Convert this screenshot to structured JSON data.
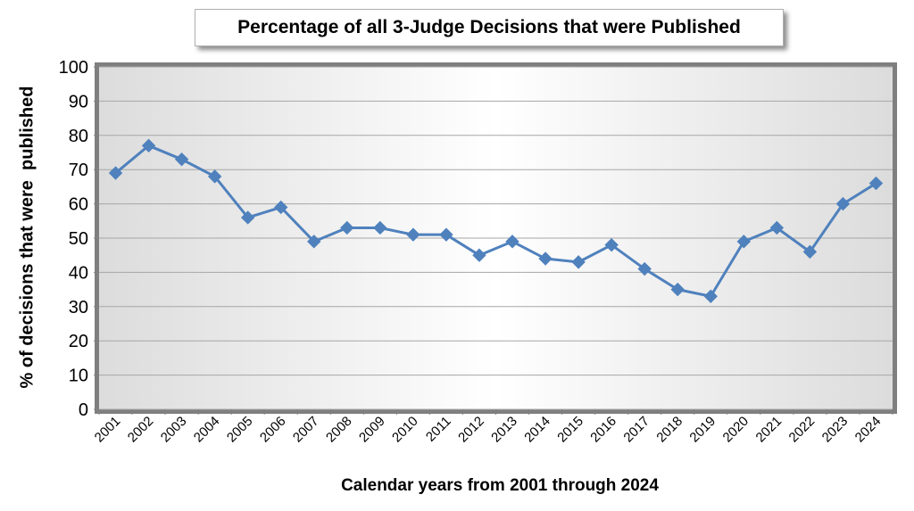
{
  "chart_data": {
    "type": "line",
    "title": "Percentage of all 3-Judge Decisions that were Published",
    "xlabel": "Calendar years from 2001 through 2024",
    "ylabel": "% of decisions that were  published",
    "ylim": [
      0,
      100
    ],
    "yticks": [
      "0",
      "10",
      "20",
      "30",
      "40",
      "50",
      "60",
      "70",
      "80",
      "90",
      "100"
    ],
    "grid": true,
    "categories": [
      "2001",
      "2002",
      "2003",
      "2004",
      "2005",
      "2006",
      "2007",
      "2008",
      "2009",
      "2010",
      "2011",
      "2012",
      "2013",
      "2014",
      "2015",
      "2016",
      "2017",
      "2018",
      "2019",
      "2020",
      "2021",
      "2022",
      "2023",
      "2024"
    ],
    "series": [
      {
        "values": [
          69,
          77,
          73,
          68,
          56,
          59,
          49,
          53,
          53,
          51,
          51,
          45,
          49,
          44,
          43,
          48,
          41,
          35,
          33,
          49,
          53,
          46,
          60,
          66
        ],
        "color": "#4f81bd",
        "marker": "diamond"
      }
    ]
  }
}
